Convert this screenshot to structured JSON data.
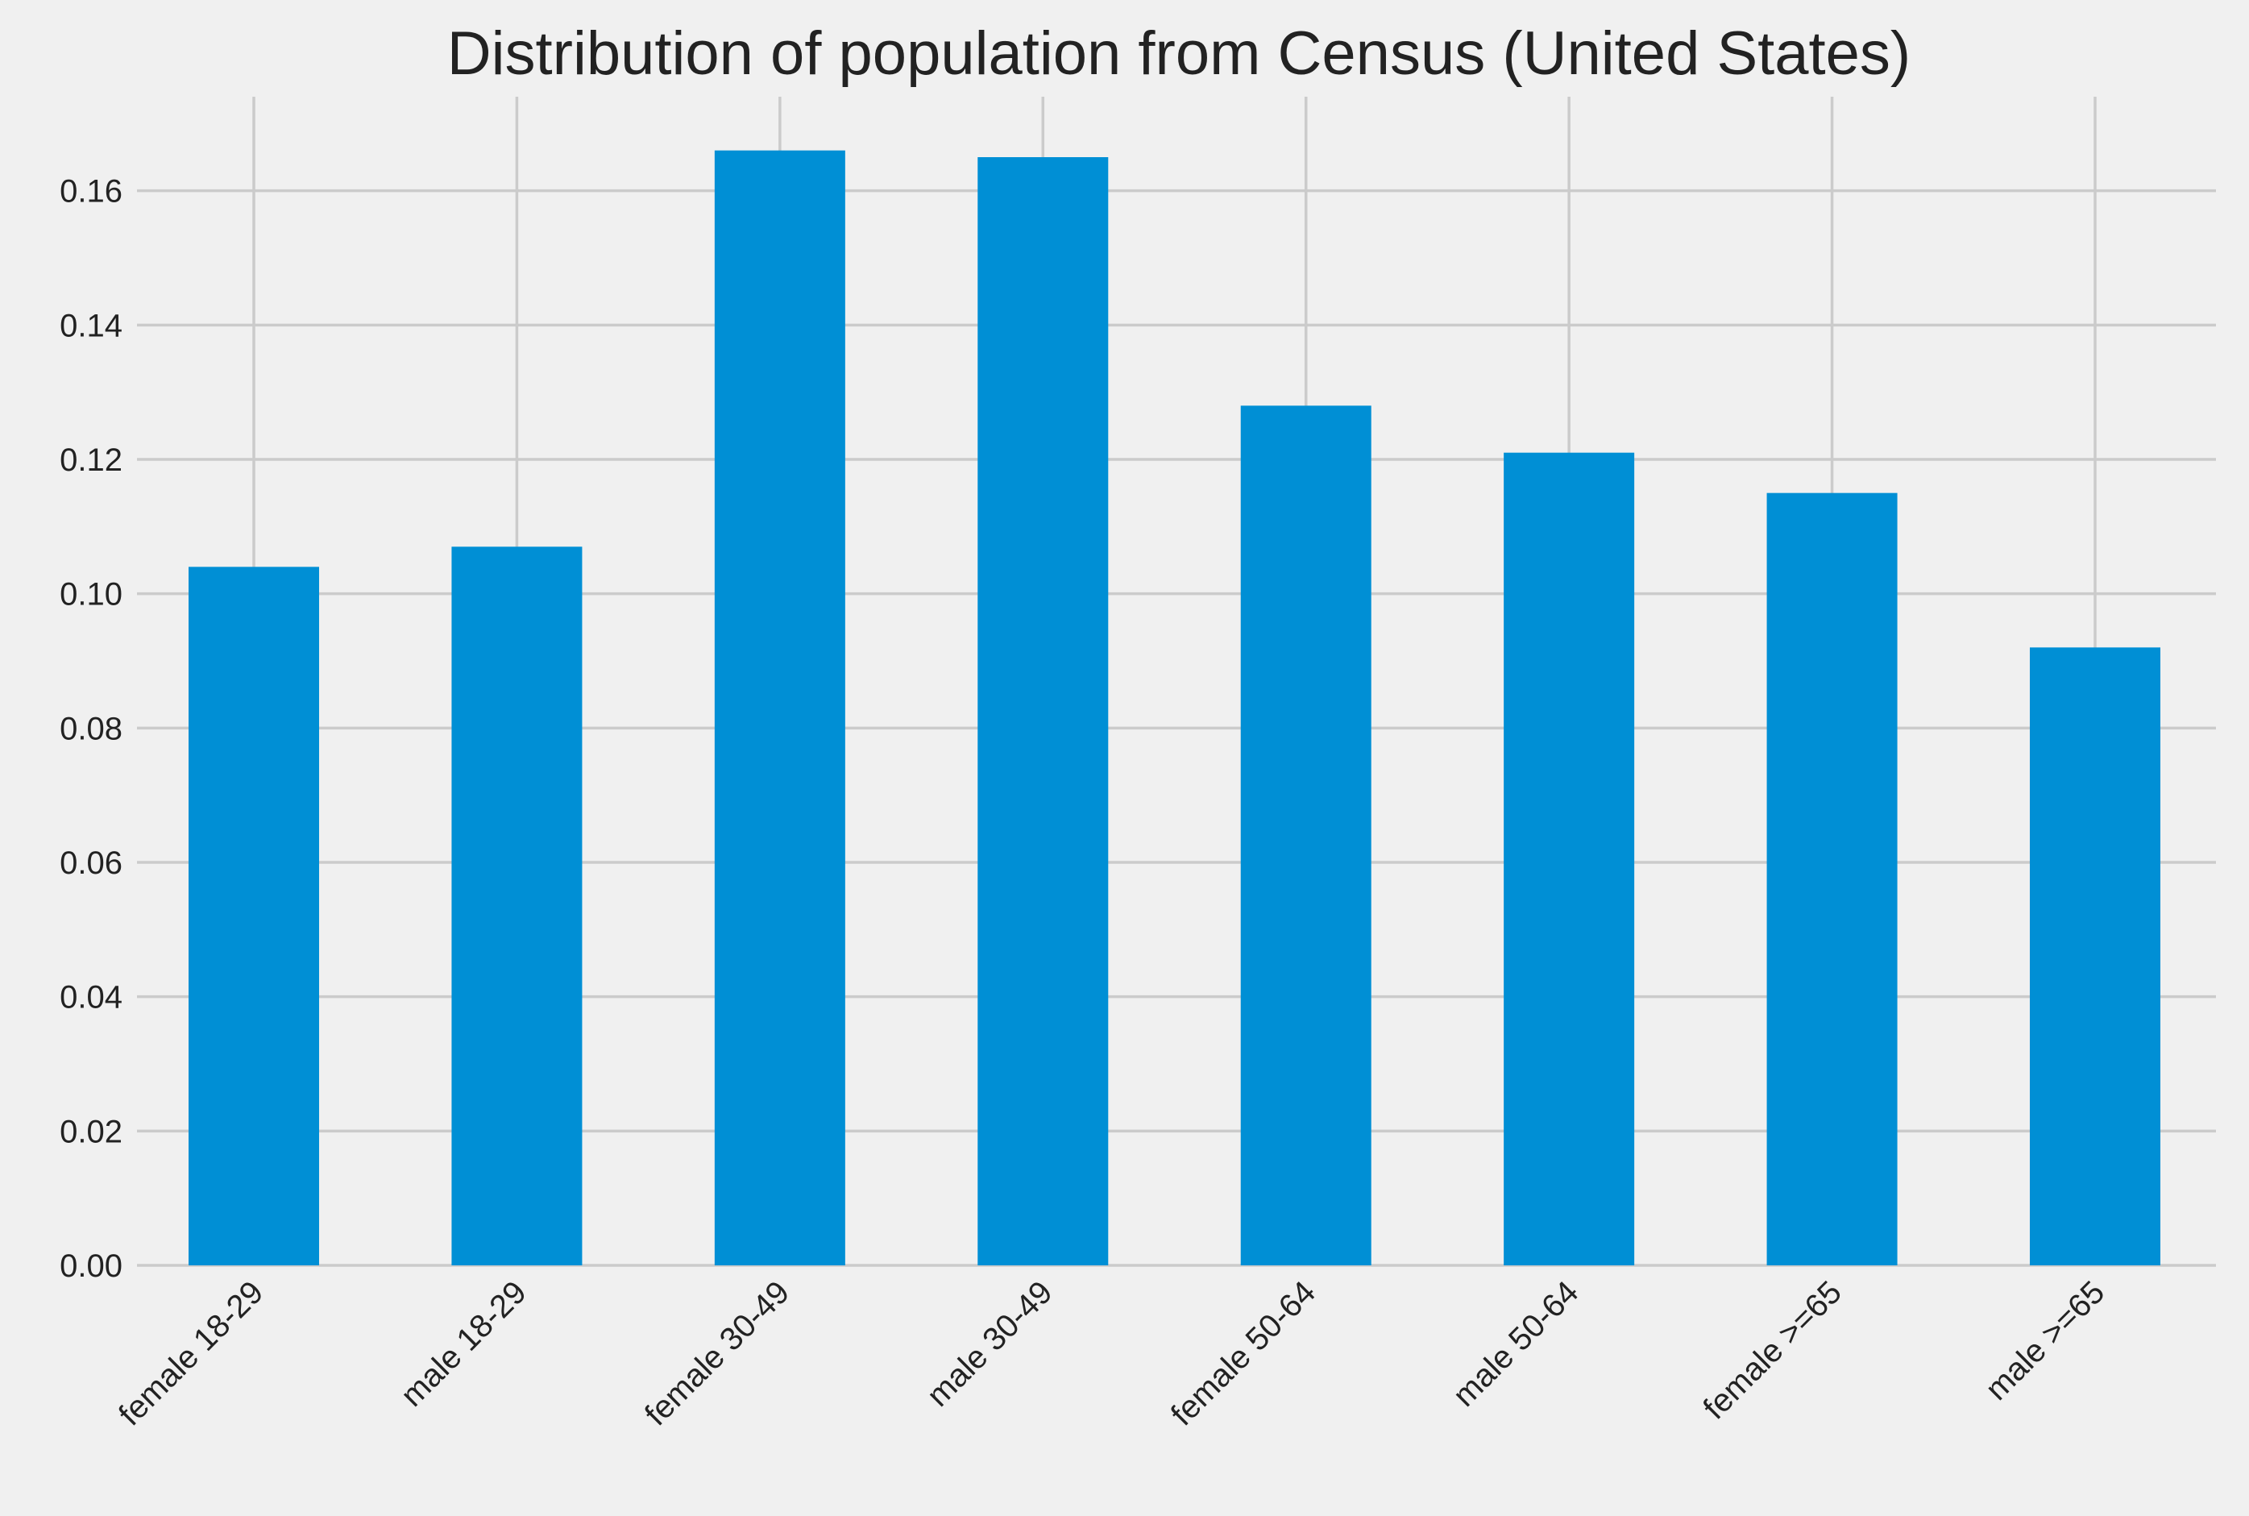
{
  "colors": {
    "background": "#f0f0f0",
    "bar": "#008fd5",
    "grid": "#cbcbcb",
    "text": "#222222"
  },
  "chart_data": {
    "type": "bar",
    "title": "Distribution of population from Census (United States)",
    "xlabel": "",
    "ylabel": "",
    "categories": [
      "female 18-29",
      "male 18-29",
      "female 30-49",
      "male 30-49",
      "female 50-64",
      "male 50-64",
      "female >=65",
      "male >=65"
    ],
    "values": [
      0.104,
      0.107,
      0.166,
      0.165,
      0.128,
      0.121,
      0.115,
      0.092
    ],
    "ylim": [
      0,
      0.174
    ],
    "y_ticks": [
      0.0,
      0.02,
      0.04,
      0.06,
      0.08,
      0.1,
      0.12,
      0.14,
      0.16
    ],
    "y_tick_labels": [
      "0.00",
      "0.02",
      "0.04",
      "0.06",
      "0.08",
      "0.10",
      "0.12",
      "0.14",
      "0.16"
    ],
    "x_tick_rotation_deg": 45,
    "grid": true,
    "legend": "none"
  }
}
